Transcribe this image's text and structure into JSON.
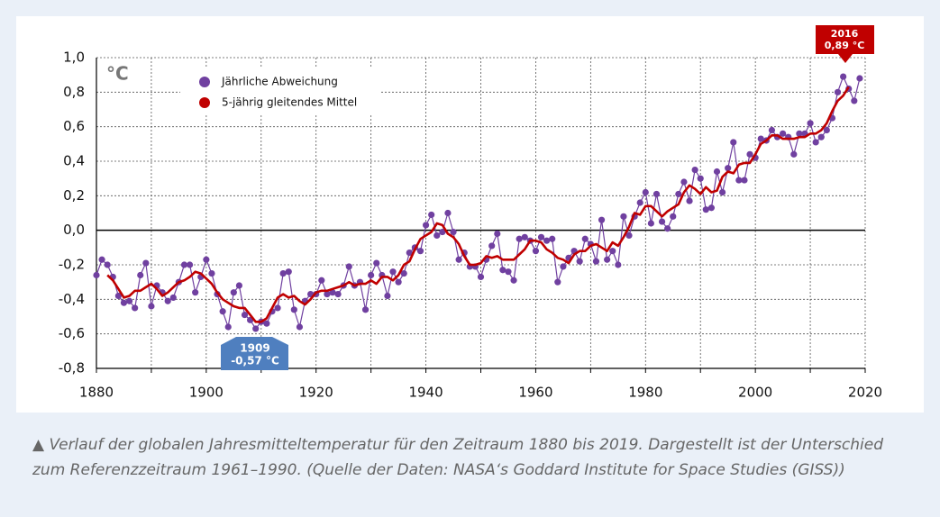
{
  "chart_data": {
    "type": "line",
    "unit_label": "°C",
    "x": [
      1880,
      1881,
      1882,
      1883,
      1884,
      1885,
      1886,
      1887,
      1888,
      1889,
      1890,
      1891,
      1892,
      1893,
      1894,
      1895,
      1896,
      1897,
      1898,
      1899,
      1900,
      1901,
      1902,
      1903,
      1904,
      1905,
      1906,
      1907,
      1908,
      1909,
      1910,
      1911,
      1912,
      1913,
      1914,
      1915,
      1916,
      1917,
      1918,
      1919,
      1920,
      1921,
      1922,
      1923,
      1924,
      1925,
      1926,
      1927,
      1928,
      1929,
      1930,
      1931,
      1932,
      1933,
      1934,
      1935,
      1936,
      1937,
      1938,
      1939,
      1940,
      1941,
      1942,
      1943,
      1944,
      1945,
      1946,
      1947,
      1948,
      1949,
      1950,
      1951,
      1952,
      1953,
      1954,
      1955,
      1956,
      1957,
      1958,
      1959,
      1960,
      1961,
      1962,
      1963,
      1964,
      1965,
      1966,
      1967,
      1968,
      1969,
      1970,
      1971,
      1972,
      1973,
      1974,
      1975,
      1976,
      1977,
      1978,
      1979,
      1980,
      1981,
      1982,
      1983,
      1984,
      1985,
      1986,
      1987,
      1988,
      1989,
      1990,
      1991,
      1992,
      1993,
      1994,
      1995,
      1996,
      1997,
      1998,
      1999,
      2000,
      2001,
      2002,
      2003,
      2004,
      2005,
      2006,
      2007,
      2008,
      2009,
      2010,
      2011,
      2012,
      2013,
      2014,
      2015,
      2016,
      2017,
      2018,
      2019
    ],
    "series": [
      {
        "name": "Jährliche Abweichung",
        "color": "#7040a0",
        "markers": true,
        "values": [
          -0.26,
          -0.17,
          -0.2,
          -0.27,
          -0.38,
          -0.42,
          -0.41,
          -0.45,
          -0.26,
          -0.19,
          -0.44,
          -0.32,
          -0.36,
          -0.41,
          -0.39,
          -0.3,
          -0.2,
          -0.2,
          -0.36,
          -0.27,
          -0.17,
          -0.25,
          -0.37,
          -0.47,
          -0.56,
          -0.36,
          -0.32,
          -0.49,
          -0.52,
          -0.57,
          -0.53,
          -0.54,
          -0.47,
          -0.45,
          -0.25,
          -0.24,
          -0.46,
          -0.56,
          -0.41,
          -0.37,
          -0.37,
          -0.29,
          -0.37,
          -0.36,
          -0.37,
          -0.32,
          -0.21,
          -0.32,
          -0.3,
          -0.46,
          -0.26,
          -0.19,
          -0.26,
          -0.38,
          -0.24,
          -0.3,
          -0.25,
          -0.13,
          -0.1,
          -0.12,
          0.03,
          0.09,
          -0.03,
          -0.01,
          0.1,
          -0.01,
          -0.17,
          -0.13,
          -0.21,
          -0.21,
          -0.27,
          -0.17,
          -0.09,
          -0.02,
          -0.23,
          -0.24,
          -0.29,
          -0.05,
          -0.04,
          -0.06,
          -0.12,
          -0.04,
          -0.06,
          -0.05,
          -0.3,
          -0.21,
          -0.16,
          -0.12,
          -0.18,
          -0.05,
          -0.08,
          -0.18,
          0.06,
          -0.17,
          -0.12,
          -0.2,
          0.08,
          -0.03,
          0.08,
          0.16,
          0.22,
          0.04,
          0.21,
          0.05,
          0.01,
          0.08,
          0.21,
          0.28,
          0.17,
          0.35,
          0.3,
          0.12,
          0.13,
          0.34,
          0.22,
          0.36,
          0.51,
          0.29,
          0.29,
          0.44,
          0.42,
          0.53,
          0.52,
          0.58,
          0.54,
          0.56,
          0.54,
          0.44,
          0.56,
          0.56,
          0.62,
          0.51,
          0.54,
          0.58,
          0.65,
          0.8,
          0.89,
          0.82,
          0.75,
          0.88
        ]
      },
      {
        "name": "5-jährig gleitendes Mittel",
        "color": "#c00000",
        "markers": false,
        "values": [
          null,
          null,
          -0.26,
          -0.29,
          -0.34,
          -0.39,
          -0.38,
          -0.35,
          -0.35,
          -0.33,
          -0.31,
          -0.34,
          -0.38,
          -0.36,
          -0.33,
          -0.3,
          -0.29,
          -0.27,
          -0.24,
          -0.25,
          -0.28,
          -0.31,
          -0.36,
          -0.4,
          -0.42,
          -0.44,
          -0.45,
          -0.45,
          -0.49,
          -0.53,
          -0.53,
          -0.51,
          -0.45,
          -0.39,
          -0.37,
          -0.39,
          -0.38,
          -0.41,
          -0.43,
          -0.4,
          -0.36,
          -0.35,
          -0.35,
          -0.34,
          -0.33,
          -0.32,
          -0.3,
          -0.32,
          -0.31,
          -0.31,
          -0.29,
          -0.31,
          -0.27,
          -0.27,
          -0.29,
          -0.26,
          -0.2,
          -0.18,
          -0.11,
          -0.05,
          -0.03,
          -0.01,
          0.04,
          0.03,
          -0.02,
          -0.04,
          -0.08,
          -0.15,
          -0.2,
          -0.2,
          -0.19,
          -0.15,
          -0.16,
          -0.15,
          -0.17,
          -0.17,
          -0.17,
          -0.14,
          -0.11,
          -0.06,
          -0.06,
          -0.07,
          -0.11,
          -0.13,
          -0.16,
          -0.17,
          -0.19,
          -0.14,
          -0.12,
          -0.12,
          -0.09,
          -0.08,
          -0.1,
          -0.12,
          -0.07,
          -0.09,
          -0.04,
          0.02,
          0.1,
          0.09,
          0.14,
          0.14,
          0.11,
          0.08,
          0.11,
          0.13,
          0.15,
          0.22,
          0.26,
          0.24,
          0.21,
          0.25,
          0.22,
          0.23,
          0.31,
          0.34,
          0.33,
          0.38,
          0.39,
          0.39,
          0.44,
          0.5,
          0.52,
          0.55,
          0.55,
          0.53,
          0.53,
          0.53,
          0.54,
          0.54,
          0.56,
          0.56,
          0.58,
          0.62,
          0.69,
          0.75,
          0.78,
          0.83,
          null,
          null
        ]
      }
    ],
    "xlim": [
      1880,
      2020
    ],
    "xticks": [
      1880,
      1900,
      1920,
      1940,
      1960,
      1980,
      2000,
      2020
    ],
    "xminorticks": [
      1890,
      1910,
      1930,
      1950,
      1970,
      1990,
      2010
    ],
    "ylim": [
      -0.8,
      1.0
    ],
    "yticks": [
      {
        "value": -0.8,
        "label": "-0,8"
      },
      {
        "value": -0.6,
        "label": "-0,6"
      },
      {
        "value": -0.4,
        "label": "-0,4"
      },
      {
        "value": -0.2,
        "label": "-0,2"
      },
      {
        "value": 0,
        "label": "0,0"
      },
      {
        "value": 0.2,
        "label": "0,2"
      },
      {
        "value": 0.4,
        "label": "0,4"
      },
      {
        "value": 0.6,
        "label": "0,6"
      },
      {
        "value": 0.8,
        "label": "0,8"
      },
      {
        "value": 1.0,
        "label": "1,0"
      }
    ],
    "grid": true,
    "legend": "upper left",
    "annotations": [
      {
        "lines": [
          "2016",
          "0,89 °C"
        ],
        "color": "#c00000"
      },
      {
        "lines": [
          "1909",
          "-0,57 °C"
        ],
        "color": "#4f7fbf"
      }
    ]
  },
  "caption": "▲ Verlauf der globalen Jahresmitteltemperatur für den Zeitraum 1880 bis 2019. Dargestellt ist der Unterschied zum Referenzzeitraum 1961–1990. (Quelle der Daten: NASA‘s Goddard Institute for Space Studies (GISS))"
}
